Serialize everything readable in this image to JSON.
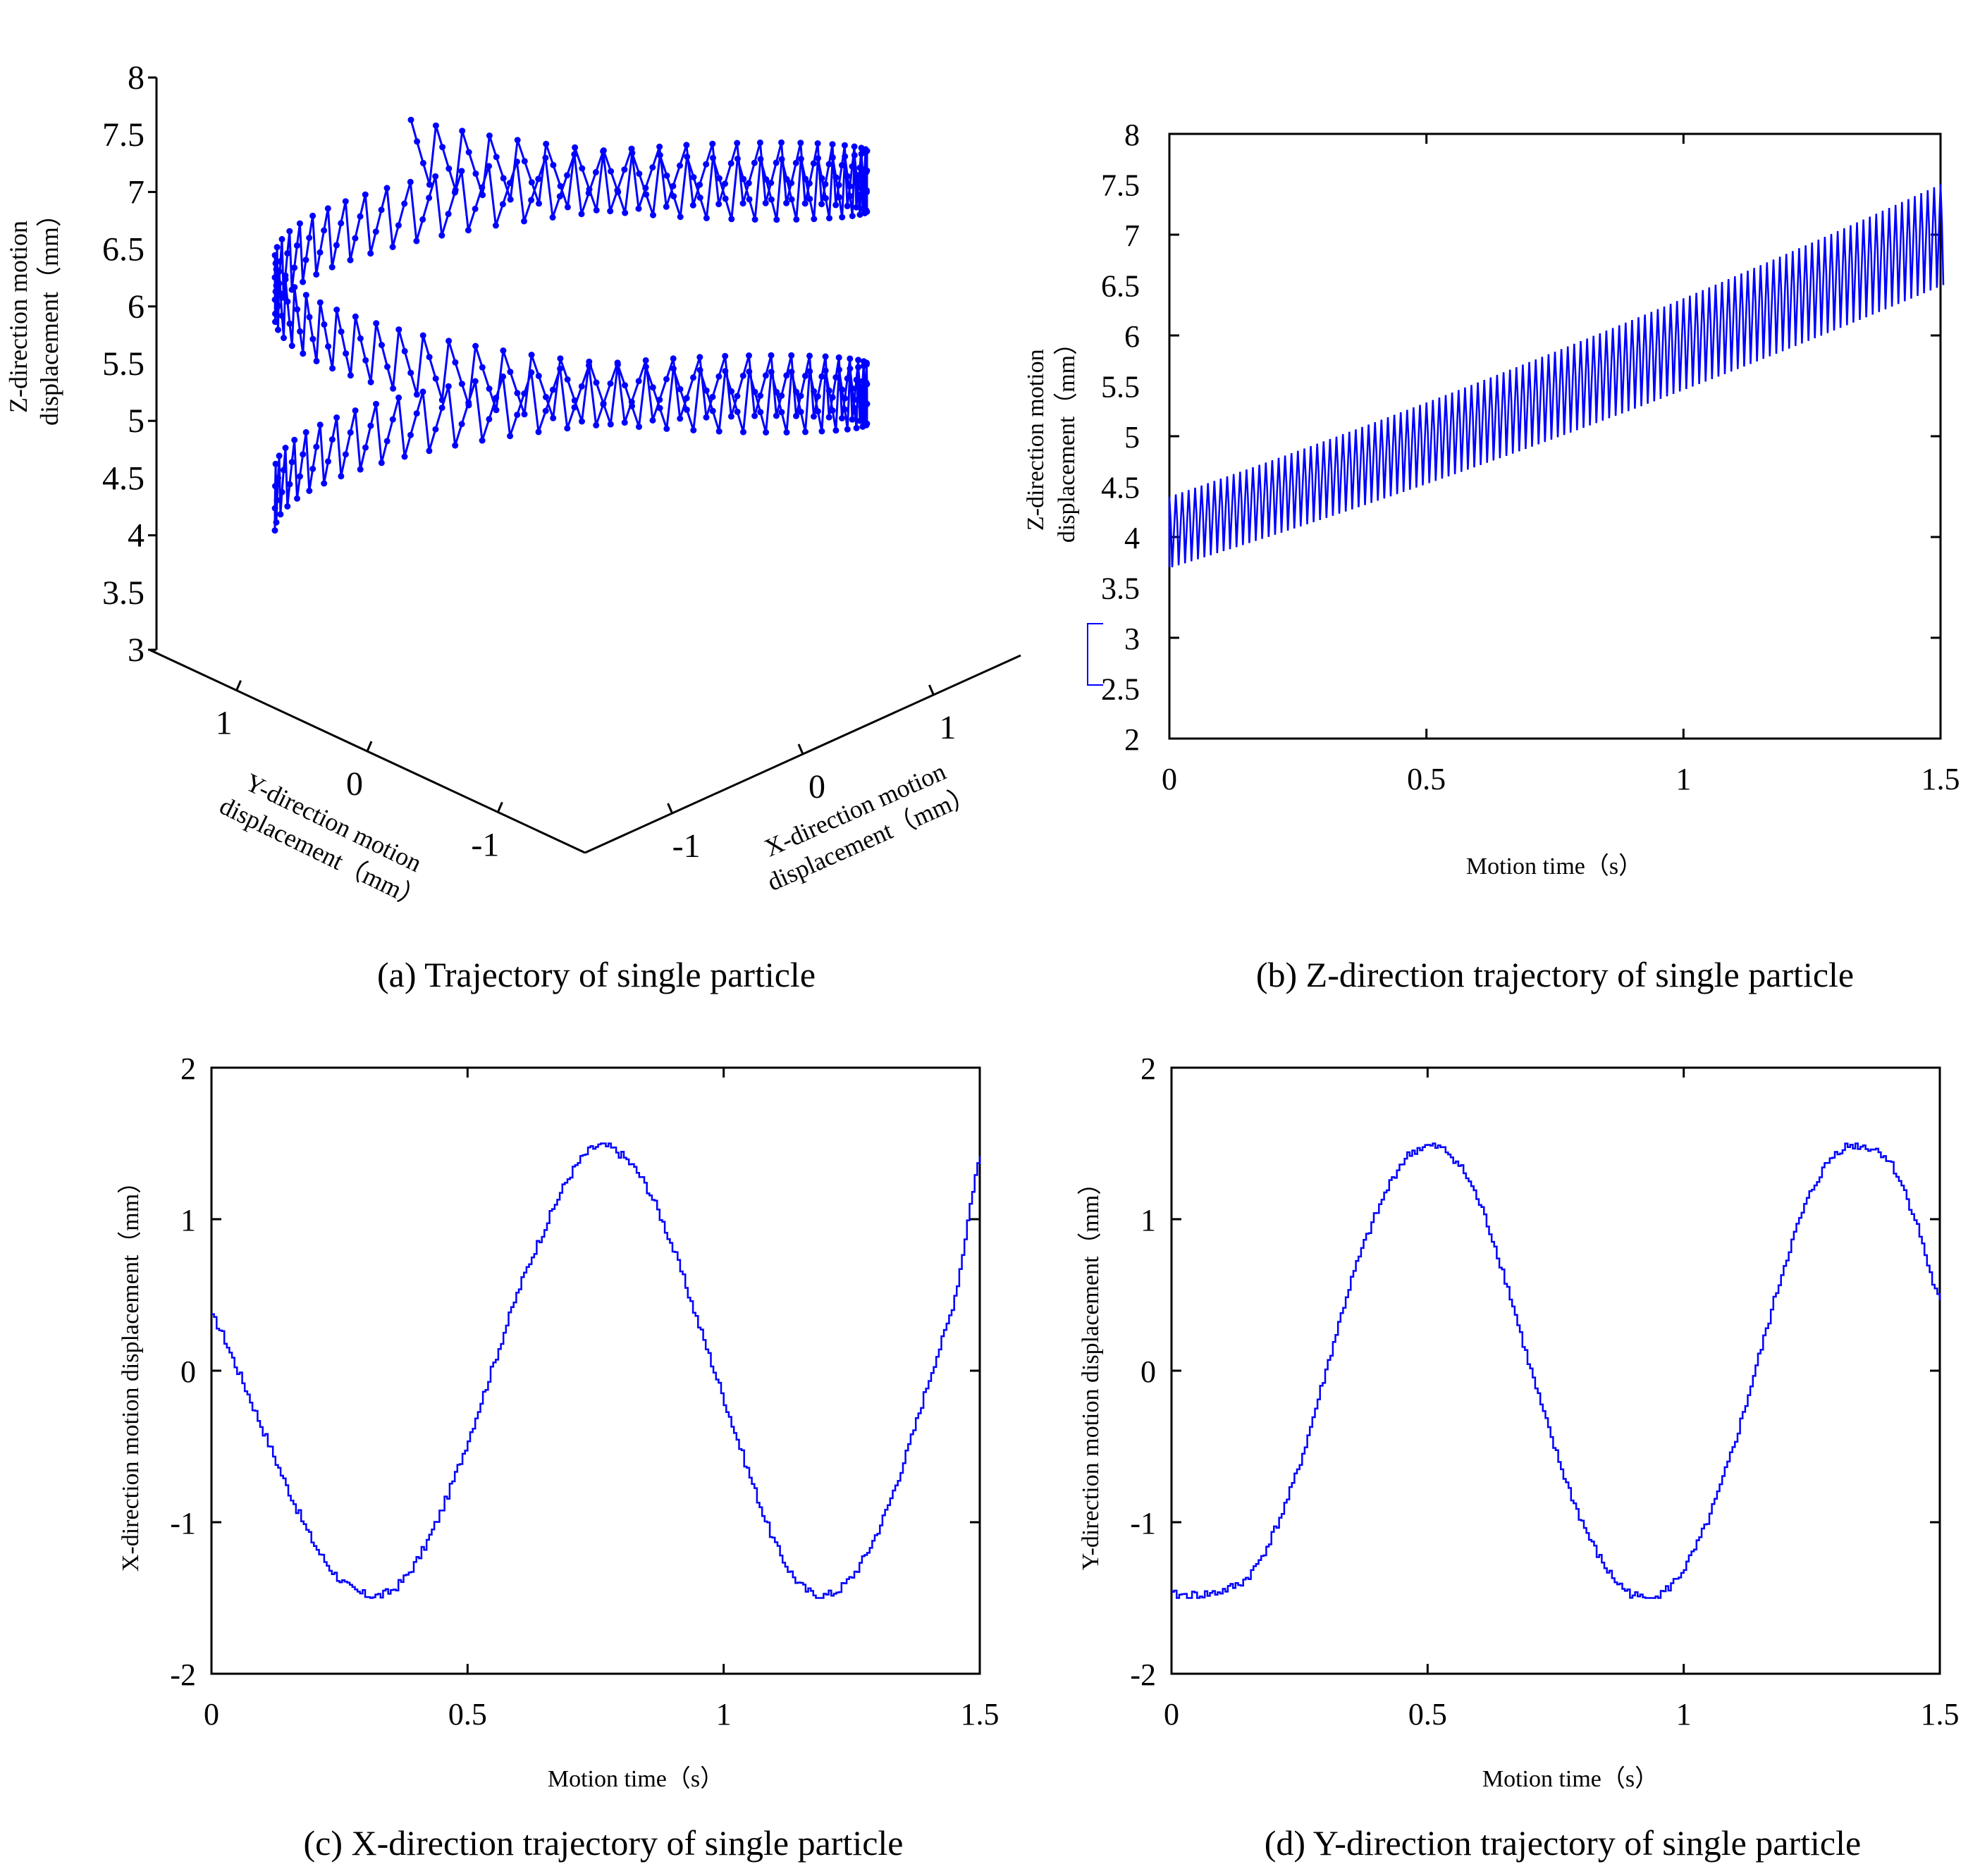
{
  "figure_captions": {
    "a": "(a) Trajectory of single particle",
    "b": "(b) Z-direction trajectory of single particle",
    "c": "(c) X-direction trajectory of single particle",
    "d": "(d) Y-direction trajectory of single particle"
  },
  "colors": {
    "trace": "#0000FF",
    "axis": "#000000"
  },
  "chart_data": [
    {
      "id": "a",
      "type": "scatter3d",
      "title": "(a) Trajectory of single particle",
      "xlabel": [
        "X-direction motion",
        "displacement（mm）"
      ],
      "ylabel": [
        "Y-direction motion",
        "displacement（mm）"
      ],
      "zlabel": [
        "Z-direction motion",
        "displacement（mm）"
      ],
      "xlim": [
        -1.5,
        1.5
      ],
      "ylim": [
        -1.5,
        1.5
      ],
      "zlim": [
        3,
        8
      ],
      "xticks": [
        "1",
        "0",
        "-1"
      ],
      "yticks": [
        "1",
        "0",
        "-1"
      ],
      "zticks": [
        "8",
        "7.5",
        "7",
        "6.5",
        "6",
        "5.5",
        "5",
        "4.5",
        "4",
        "3.5",
        "3"
      ],
      "trajectory": {
        "shape": "helix with saw-tooth vertical oscillation",
        "radius": 1.5,
        "z_start": 3.8,
        "z_end": 7.2,
        "period_s": 0.82,
        "time_range_s": [
          0,
          1.5
        ],
        "marker": "dot-line"
      }
    },
    {
      "id": "b",
      "type": "line",
      "title": "(b) Z-direction trajectory of single particle",
      "xlabel": "Motion time（s）",
      "ylabel": [
        "Z-direction motion",
        "displacement（mm）"
      ],
      "xlim": [
        0,
        1.5
      ],
      "ylim": [
        2,
        8
      ],
      "xticks": [
        "0",
        "0.5",
        "1",
        "1.5"
      ],
      "yticks": [
        "2",
        "2.5",
        "3",
        "3.5",
        "4",
        "4.5",
        "5",
        "5.5",
        "6",
        "6.5",
        "7",
        "7.5",
        "8"
      ],
      "series": [
        {
          "name": "Z",
          "pattern": "oscillating band",
          "band_center_start": 4.05,
          "band_center_end": 7.0,
          "band_halfwidth_start": 0.35,
          "band_halfwidth_end": 0.5,
          "oscillations": 120
        }
      ]
    },
    {
      "id": "c",
      "type": "line",
      "title": "(c) X-direction trajectory of single particle",
      "xlabel": "Motion time（s）",
      "ylabel": "X-direction motion displacement（mm）",
      "xlim": [
        0,
        1.5
      ],
      "ylim": [
        -2,
        2
      ],
      "xticks": [
        "0",
        "0.5",
        "1",
        "1.5"
      ],
      "yticks": [
        "-2",
        "-1",
        "0",
        "1",
        "2"
      ],
      "series": [
        {
          "name": "X",
          "x": [
            0,
            0.05,
            0.1,
            0.15,
            0.2,
            0.25,
            0.3,
            0.35,
            0.4,
            0.45,
            0.5,
            0.55,
            0.6,
            0.65,
            0.7,
            0.75,
            0.8,
            0.85,
            0.9,
            0.95,
            1.0,
            1.05,
            1.1,
            1.15,
            1.2,
            1.25,
            1.3,
            1.35,
            1.4,
            1.45,
            1.5
          ],
          "y": [
            0.35,
            0.0,
            -0.4,
            -0.8,
            -1.15,
            -1.38,
            -1.48,
            -1.45,
            -1.25,
            -0.9,
            -0.45,
            0.05,
            0.55,
            0.95,
            1.3,
            1.48,
            1.42,
            1.2,
            0.8,
            0.3,
            -0.2,
            -0.7,
            -1.15,
            -1.42,
            -1.48,
            -1.35,
            -1.05,
            -0.6,
            -0.05,
            0.5,
            1.42
          ]
        }
      ]
    },
    {
      "id": "d",
      "type": "line",
      "title": "(d) Y-direction trajectory of single particle",
      "xlabel": "Motion time（s）",
      "ylabel": "Y-direction motion displacement（mm）",
      "xlim": [
        0,
        1.5
      ],
      "ylim": [
        -2,
        2
      ],
      "xticks": [
        "0",
        "0.5",
        "1",
        "1.5"
      ],
      "yticks": [
        "-2",
        "-1",
        "0",
        "1",
        "2"
      ],
      "series": [
        {
          "name": "Y",
          "x": [
            0,
            0.05,
            0.1,
            0.15,
            0.2,
            0.25,
            0.3,
            0.35,
            0.4,
            0.45,
            0.5,
            0.55,
            0.6,
            0.65,
            0.7,
            0.75,
            0.8,
            0.85,
            0.9,
            0.95,
            1.0,
            1.05,
            1.1,
            1.15,
            1.2,
            1.25,
            1.3,
            1.35,
            1.4,
            1.45,
            1.5
          ],
          "y": [
            -1.48,
            -1.48,
            -1.45,
            -1.35,
            -1.05,
            -0.6,
            0.0,
            0.6,
            1.05,
            1.38,
            1.48,
            1.4,
            1.1,
            0.6,
            0.0,
            -0.55,
            -1.0,
            -1.32,
            -1.48,
            -1.48,
            -1.3,
            -0.95,
            -0.45,
            0.15,
            0.75,
            1.2,
            1.45,
            1.48,
            1.38,
            1.0,
            0.45
          ]
        }
      ]
    }
  ]
}
